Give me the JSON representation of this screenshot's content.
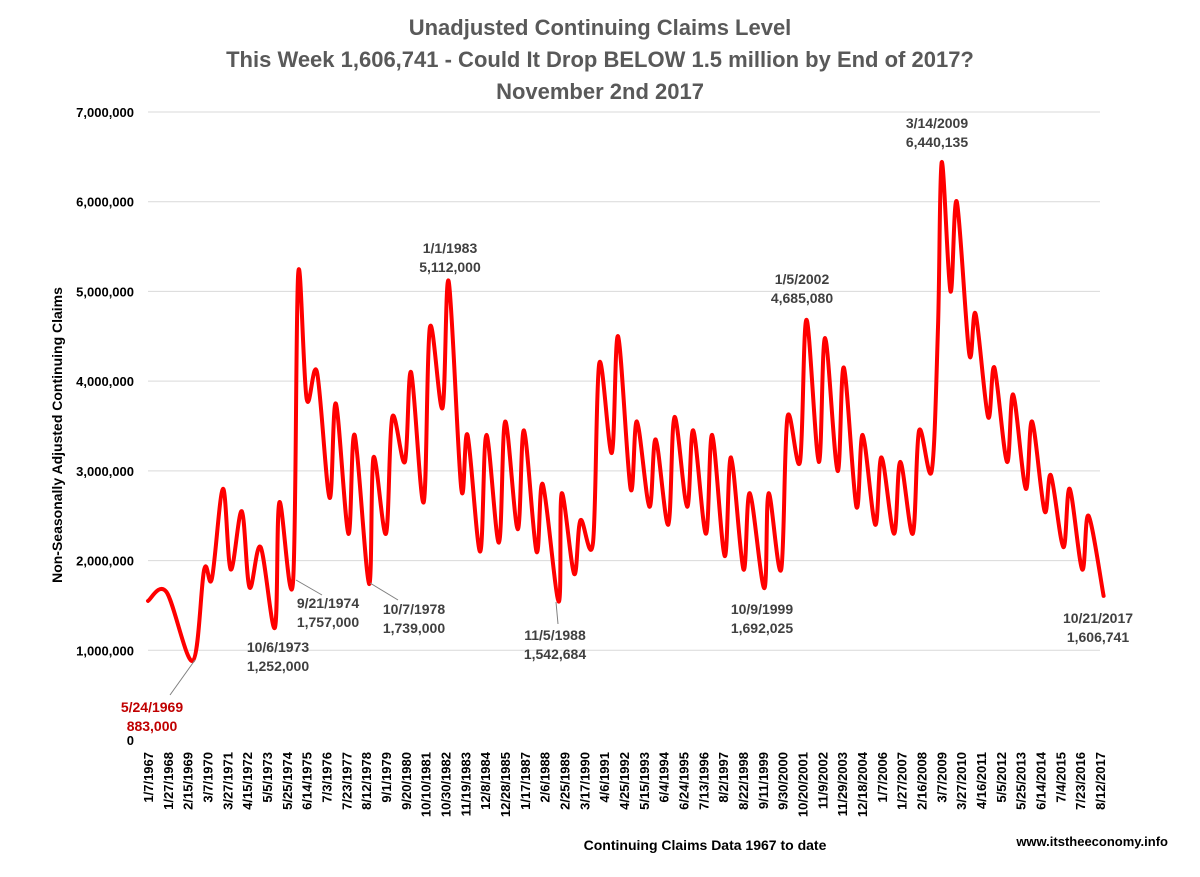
{
  "chart_data": {
    "type": "line",
    "title_lines": [
      "Unadjusted Continuing Claims Level",
      "This Week 1,606,741 - Could It Drop BELOW 1.5 million by End of 2017?",
      "November 2nd 2017"
    ],
    "xlabel": "Continuing Claims Data 1967 to date",
    "ylabel": "Non-Seasonally Adjusted Continuing Claims",
    "ylim": [
      0,
      7000000
    ],
    "yticks": [
      {
        "value": 0,
        "label": "0"
      },
      {
        "value": 1000000,
        "label": "1,000,000"
      },
      {
        "value": 2000000,
        "label": "2,000,000"
      },
      {
        "value": 3000000,
        "label": "3,000,000"
      },
      {
        "value": 4000000,
        "label": "4,000,000"
      },
      {
        "value": 5000000,
        "label": "5,000,000"
      },
      {
        "value": 6000000,
        "label": "6,000,000"
      },
      {
        "value": 7000000,
        "label": "7,000,000"
      }
    ],
    "xticks": [
      "1/7/1967",
      "1/27/1968",
      "2/15/1969",
      "3/7/1970",
      "3/27/1971",
      "4/15/1972",
      "5/5/1973",
      "5/25/1974",
      "6/14/1975",
      "7/3/1976",
      "7/23/1977",
      "8/12/1978",
      "9/1/1979",
      "9/20/1980",
      "10/10/1981",
      "10/30/1982",
      "11/19/1983",
      "12/8/1984",
      "12/28/1985",
      "1/17/1987",
      "2/6/1988",
      "2/25/1989",
      "3/17/1990",
      "4/6/1991",
      "4/25/1992",
      "5/15/1993",
      "6/4/1994",
      "6/24/1995",
      "7/13/1996",
      "8/2/1997",
      "8/22/1998",
      "9/11/1999",
      "9/30/2000",
      "10/20/2001",
      "11/9/2002",
      "11/29/2003",
      "12/18/2004",
      "1/7/2006",
      "1/27/2007",
      "2/16/2008",
      "3/7/2009",
      "3/27/2010",
      "4/16/2011",
      "5/5/2012",
      "5/25/2013",
      "6/14/2014",
      "7/4/2015",
      "7/23/2016",
      "8/12/2017"
    ],
    "grid": true,
    "legend": "none",
    "line_color": "#ff0000",
    "series": [
      {
        "x": [
          "1/7/1967",
          "1/1/1968",
          "5/24/1969",
          "1/1/1970",
          "6/1/1970",
          "1/1/1971",
          "6/1/1971",
          "1/1/1972",
          "6/1/1972",
          "1/1/1973",
          "10/6/1973",
          "1/1/1974",
          "9/21/1974",
          "1/1/1975",
          "6/14/1975",
          "1/1/1976",
          "9/1/1976",
          "1/1/1977",
          "9/1/1977",
          "1/1/1978",
          "10/7/1978",
          "1/1/1979",
          "9/1/1979",
          "1/1/1980",
          "9/1/1980",
          "1/1/1981",
          "9/1/1981",
          "1/1/1982",
          "9/1/1982",
          "1/1/1983",
          "9/1/1983",
          "1/1/1984",
          "9/1/1984",
          "1/1/1985",
          "9/1/1985",
          "1/1/1986",
          "9/1/1986",
          "1/1/1987",
          "9/1/1987",
          "1/1/1988",
          "11/5/1988",
          "1/1/1989",
          "9/1/1989",
          "1/1/1990",
          "9/1/1990",
          "1/1/1991",
          "9/1/1991",
          "1/1/1992",
          "9/1/1992",
          "1/1/1993",
          "9/1/1993",
          "1/1/1994",
          "9/1/1994",
          "1/1/1995",
          "9/1/1995",
          "1/1/1996",
          "9/1/1996",
          "1/1/1997",
          "9/1/1997",
          "1/1/1998",
          "9/1/1998",
          "1/1/1999",
          "10/9/1999",
          "1/1/2000",
          "9/1/2000",
          "1/1/2001",
          "9/1/2001",
          "1/5/2002",
          "9/1/2002",
          "1/1/2003",
          "9/1/2003",
          "1/1/2004",
          "9/1/2004",
          "1/1/2005",
          "9/1/2005",
          "1/1/2006",
          "9/1/2006",
          "1/1/2007",
          "9/1/2007",
          "1/1/2008",
          "9/1/2008",
          "1/1/2009",
          "3/14/2009",
          "9/1/2009",
          "1/1/2010",
          "9/1/2010",
          "1/1/2011",
          "9/1/2011",
          "1/1/2012",
          "9/1/2012",
          "1/1/2013",
          "9/1/2013",
          "1/1/2014",
          "9/1/2014",
          "1/1/2015",
          "9/1/2015",
          "1/1/2016",
          "9/1/2016",
          "1/1/2017",
          "10/21/2017"
        ],
        "y": [
          1550000,
          1650000,
          883000,
          1900000,
          1800000,
          2800000,
          1900000,
          2550000,
          1700000,
          2150000,
          1252000,
          2650000,
          1757000,
          5200000,
          3800000,
          4100000,
          2700000,
          3750000,
          2300000,
          3400000,
          1739000,
          3150000,
          2300000,
          3600000,
          3100000,
          4100000,
          2650000,
          4600000,
          3700000,
          5112000,
          2800000,
          3400000,
          2100000,
          3400000,
          2200000,
          3550000,
          2350000,
          3450000,
          2100000,
          2850000,
          1542684,
          2750000,
          1850000,
          2450000,
          2200000,
          4200000,
          3200000,
          4500000,
          2800000,
          3550000,
          2600000,
          3350000,
          2400000,
          3600000,
          2600000,
          3450000,
          2300000,
          3400000,
          2050000,
          3150000,
          1900000,
          2750000,
          1692025,
          2750000,
          1900000,
          3600000,
          3100000,
          4685080,
          3100000,
          4480000,
          3000000,
          4150000,
          2600000,
          3400000,
          2400000,
          3150000,
          2300000,
          3100000,
          2300000,
          3450000,
          3000000,
          4600000,
          6440135,
          5000000,
          6000000,
          4300000,
          4750000,
          3600000,
          4150000,
          3100000,
          3850000,
          2800000,
          3550000,
          2550000,
          2950000,
          2150000,
          2800000,
          1900000,
          2500000,
          1606741
        ]
      }
    ],
    "annotations": [
      {
        "date": "5/24/1969",
        "text": "5/24/1969",
        "value_text": "883,000",
        "color": "#c00000"
      },
      {
        "date": "10/6/1973",
        "text": "10/6/1973",
        "value_text": "1,252,000",
        "color": "#404040"
      },
      {
        "date": "9/21/1974",
        "text": "9/21/1974",
        "value_text": "1,757,000",
        "color": "#404040"
      },
      {
        "date": "10/7/1978",
        "text": "10/7/1978",
        "value_text": "1,739,000",
        "color": "#404040"
      },
      {
        "date": "1/1/1983",
        "text": "1/1/1983",
        "value_text": "5,112,000",
        "color": "#404040"
      },
      {
        "date": "11/5/1988",
        "text": "11/5/1988",
        "value_text": "1,542,684",
        "color": "#404040"
      },
      {
        "date": "10/9/1999",
        "text": "10/9/1999",
        "value_text": "1,692,025",
        "color": "#404040"
      },
      {
        "date": "1/5/2002",
        "text": "1/5/2002",
        "value_text": "4,685,080",
        "color": "#404040"
      },
      {
        "date": "3/14/2009",
        "text": "3/14/2009",
        "value_text": "6,440,135",
        "color": "#404040"
      },
      {
        "date": "10/21/2017",
        "text": "10/21/2017",
        "value_text": "1,606,741",
        "color": "#404040"
      }
    ],
    "source_text": "www.itstheeconomy.info"
  }
}
